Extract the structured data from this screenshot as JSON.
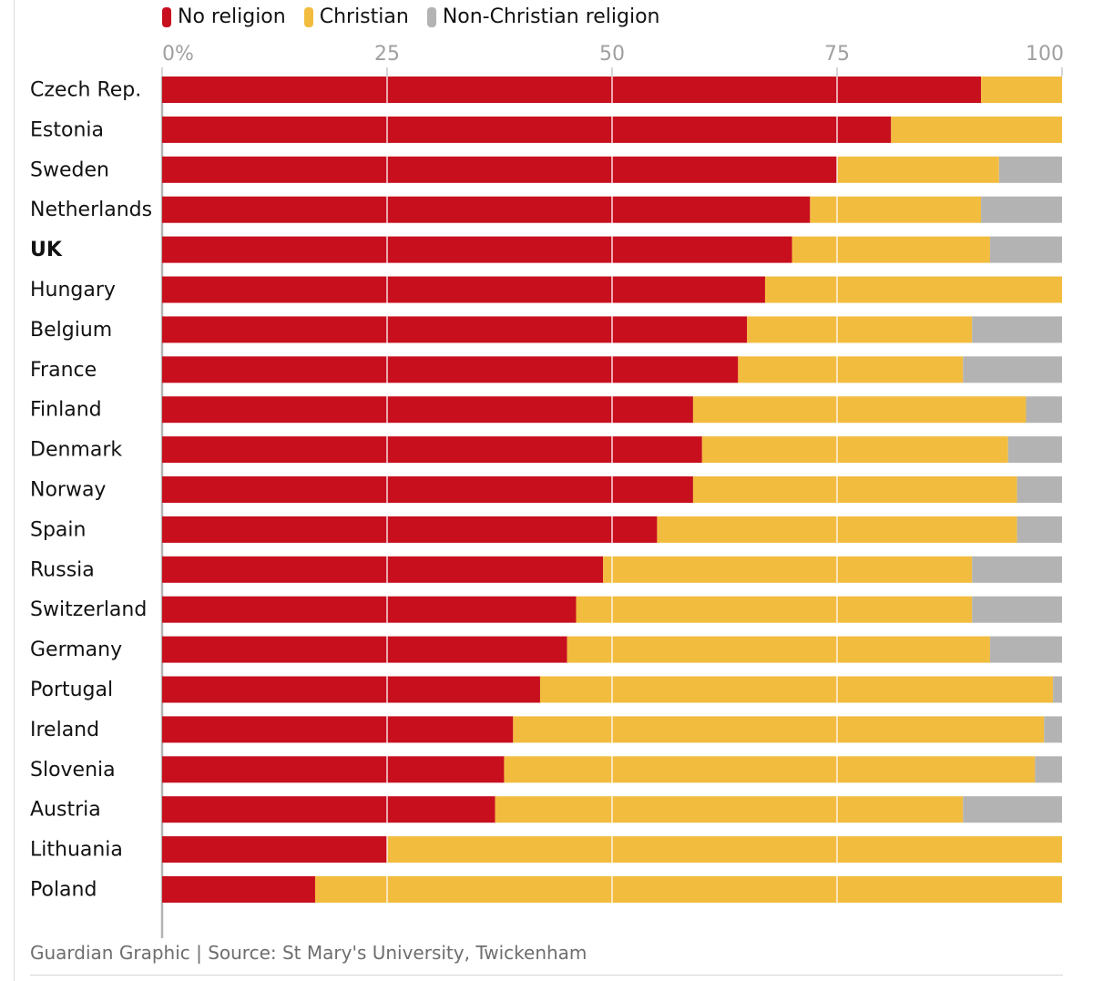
{
  "chart_data": {
    "type": "bar",
    "orientation": "horizontal",
    "stacked": true,
    "title": "",
    "xlabel": "",
    "ylabel": "",
    "xlim": [
      0,
      100
    ],
    "x_ticks": [
      {
        "value": 0,
        "label": "0%"
      },
      {
        "value": 25,
        "label": "25"
      },
      {
        "value": 50,
        "label": "50"
      },
      {
        "value": 75,
        "label": "75"
      },
      {
        "value": 100,
        "label": "100"
      }
    ],
    "grid": true,
    "legend_position": "top-left",
    "categories": [
      "Czech Rep.",
      "Estonia",
      "Sweden",
      "Netherlands",
      "UK",
      "Hungary",
      "Belgium",
      "France",
      "Finland",
      "Denmark",
      "Norway",
      "Spain",
      "Russia",
      "Switzerland",
      "Germany",
      "Portugal",
      "Ireland",
      "Slovenia",
      "Austria",
      "Lithuania",
      "Poland"
    ],
    "highlighted_category": "UK",
    "series": [
      {
        "name": "No religion",
        "color": "#c70f1e",
        "values": [
          91,
          81,
          75,
          72,
          70,
          67,
          65,
          64,
          59,
          60,
          59,
          55,
          49,
          46,
          45,
          42,
          39,
          38,
          37,
          25,
          17
        ]
      },
      {
        "name": "Christian",
        "color": "#f2bc3f",
        "values": [
          9,
          19,
          18,
          19,
          22,
          33,
          25,
          25,
          37,
          34,
          36,
          40,
          41,
          44,
          47,
          57,
          59,
          59,
          52,
          75,
          83
        ]
      },
      {
        "name": "Non-Christian religion",
        "color": "#b3b3b3",
        "values": [
          0,
          0,
          7,
          9,
          8,
          0,
          10,
          11,
          4,
          6,
          5,
          5,
          10,
          10,
          8,
          1,
          2,
          3,
          11,
          0,
          0
        ]
      }
    ]
  },
  "footer": {
    "source": "Guardian Graphic | Source: St Mary's University, Twickenham"
  }
}
